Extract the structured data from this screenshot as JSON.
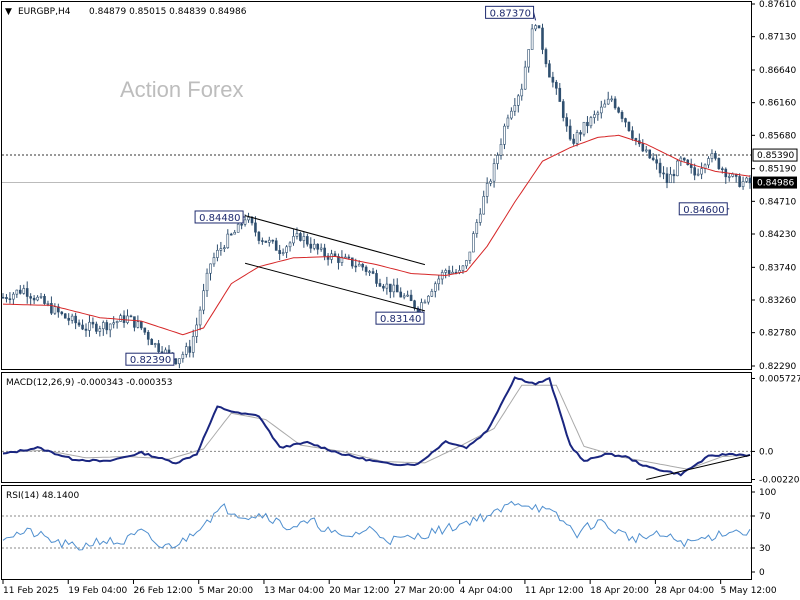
{
  "header": {
    "symbol": "EURGBP,H4",
    "ohlc": "0.84879 0.85015 0.84839 0.84986"
  },
  "watermark": "Action Forex",
  "macd_title": "MACD(12,26,9) -0.000343 -0.000353",
  "rsi_title": "RSI(14) 48.1400",
  "colors": {
    "candle": "#2f4f6f",
    "ma": "#d62728",
    "macd_line": "#1a2680",
    "macd_signal": "#aaaaaa",
    "rsi_line": "#4f8fcf",
    "callout": "#1e2a6e"
  },
  "chart_data": [
    {
      "type": "candlestick",
      "title": "EURGBP,H4",
      "ylim": [
        0.8229,
        0.8761
      ],
      "y_ticks": [
        "0.87610",
        "0.87130",
        "0.86640",
        "0.86160",
        "0.85680",
        "0.85190",
        "0.84710",
        "0.84230",
        "0.83740",
        "0.83260",
        "0.82780",
        "0.82290"
      ],
      "x_ticks": [
        "11 Feb 2025",
        "19 Feb 04:00",
        "26 Feb 12:00",
        "5 Mar 20:00",
        "13 Mar 04:00",
        "20 Mar 12:00",
        "27 Mar 20:00",
        "4 Apr 04:00",
        "11 Apr 12:00",
        "18 Apr 20:00",
        "28 Apr 04:00",
        "5 May 12:00"
      ],
      "close_path": [
        [
          0,
          0.833
        ],
        [
          6,
          0.8342
        ],
        [
          12,
          0.832
        ],
        [
          18,
          0.83
        ],
        [
          24,
          0.8285
        ],
        [
          30,
          0.829
        ],
        [
          36,
          0.83
        ],
        [
          40,
          0.8285
        ],
        [
          44,
          0.826
        ],
        [
          48,
          0.8245
        ],
        [
          50,
          0.8239
        ],
        [
          54,
          0.8255
        ],
        [
          56,
          0.829
        ],
        [
          60,
          0.838
        ],
        [
          64,
          0.841
        ],
        [
          68,
          0.843
        ],
        [
          70,
          0.8448
        ],
        [
          74,
          0.842
        ],
        [
          80,
          0.84
        ],
        [
          86,
          0.842
        ],
        [
          92,
          0.8395
        ],
        [
          98,
          0.8385
        ],
        [
          104,
          0.8375
        ],
        [
          110,
          0.835
        ],
        [
          116,
          0.833
        ],
        [
          120,
          0.8314
        ],
        [
          124,
          0.8345
        ],
        [
          128,
          0.837
        ],
        [
          132,
          0.8365
        ],
        [
          134,
          0.838
        ],
        [
          138,
          0.846
        ],
        [
          142,
          0.852
        ],
        [
          146,
          0.86
        ],
        [
          150,
          0.864
        ],
        [
          152,
          0.87
        ],
        [
          154,
          0.8737
        ],
        [
          158,
          0.866
        ],
        [
          162,
          0.86
        ],
        [
          164,
          0.8555
        ],
        [
          168,
          0.858
        ],
        [
          172,
          0.86
        ],
        [
          176,
          0.8622
        ],
        [
          180,
          0.859
        ],
        [
          184,
          0.855
        ],
        [
          188,
          0.853
        ],
        [
          192,
          0.85
        ],
        [
          196,
          0.853
        ],
        [
          200,
          0.851
        ],
        [
          204,
          0.854
        ],
        [
          208,
          0.852
        ],
        [
          212,
          0.85
        ],
        [
          216,
          0.8498
        ]
      ],
      "ma_path": [
        [
          0,
          0.832
        ],
        [
          14,
          0.8318
        ],
        [
          28,
          0.83
        ],
        [
          40,
          0.8295
        ],
        [
          52,
          0.8275
        ],
        [
          58,
          0.8285
        ],
        [
          66,
          0.835
        ],
        [
          74,
          0.8375
        ],
        [
          84,
          0.8388
        ],
        [
          96,
          0.839
        ],
        [
          108,
          0.8378
        ],
        [
          118,
          0.8365
        ],
        [
          128,
          0.8362
        ],
        [
          134,
          0.8368
        ],
        [
          140,
          0.8405
        ],
        [
          148,
          0.847
        ],
        [
          156,
          0.853
        ],
        [
          164,
          0.855
        ],
        [
          172,
          0.8565
        ],
        [
          178,
          0.8568
        ],
        [
          186,
          0.8555
        ],
        [
          196,
          0.853
        ],
        [
          206,
          0.8515
        ],
        [
          216,
          0.8508
        ]
      ],
      "annotations": [
        {
          "label": "0.87370",
          "x": 154,
          "y": 0.8737,
          "side": "left"
        },
        {
          "label": "0.84480",
          "x": 70,
          "y": 0.8448,
          "side": "left"
        },
        {
          "label": "0.83140",
          "x": 120,
          "y": 0.8314,
          "side": "below"
        },
        {
          "label": "0.82390",
          "x": 50,
          "y": 0.8239,
          "side": "left"
        },
        {
          "label": "0.84600",
          "x": 210,
          "y": 0.846,
          "side": "left"
        }
      ],
      "dashed_level": 0.8539,
      "dashed_level_label": "0.85390",
      "current_price": 0.84986,
      "current_price_label": "0.84986",
      "channel": {
        "upper": [
          [
            70,
            0.845
          ],
          [
            122,
            0.8378
          ]
        ],
        "lower": [
          [
            70,
            0.838
          ],
          [
            122,
            0.831
          ]
        ]
      }
    },
    {
      "type": "line",
      "title": "MACD(12,26,9) -0.000343 -0.000353",
      "ylim": [
        -0.0024,
        0.006
      ],
      "y_ticks": [
        0.005727,
        0.0,
        -0.002204
      ],
      "y_tick_labels": [
        "0.005727",
        "0.0",
        "-0.002204"
      ],
      "series": [
        {
          "values": [
            [
              0,
              -0.0002
            ],
            [
              10,
              0.0003
            ],
            [
              20,
              -0.0006
            ],
            [
              30,
              -0.0008
            ],
            [
              40,
              -0.0001
            ],
            [
              50,
              -0.0009
            ],
            [
              56,
              -0.0002
            ],
            [
              62,
              0.0035
            ],
            [
              68,
              0.003
            ],
            [
              74,
              0.0028
            ],
            [
              80,
              0.0003
            ],
            [
              88,
              0.0007
            ],
            [
              98,
              -0.0002
            ],
            [
              106,
              -0.0007
            ],
            [
              112,
              -0.001
            ],
            [
              120,
              -0.001
            ],
            [
              128,
              0.0008
            ],
            [
              134,
              0.0003
            ],
            [
              140,
              0.0016
            ],
            [
              148,
              0.0058
            ],
            [
              154,
              0.0053
            ],
            [
              158,
              0.0057
            ],
            [
              164,
              0.0005
            ],
            [
              168,
              -0.0008
            ],
            [
              174,
              -0.0002
            ],
            [
              180,
              -0.0004
            ],
            [
              186,
              -0.0012
            ],
            [
              196,
              -0.0018
            ],
            [
              204,
              -0.0004
            ],
            [
              210,
              -0.0002
            ],
            [
              216,
              -0.0003
            ]
          ]
        },
        {
          "values": [
            [
              0,
              -0.0001
            ],
            [
              12,
              0.0001
            ],
            [
              24,
              -0.0005
            ],
            [
              36,
              -0.0004
            ],
            [
              48,
              -0.0006
            ],
            [
              58,
              0.0002
            ],
            [
              66,
              0.003
            ],
            [
              76,
              0.0025
            ],
            [
              86,
              0.0005
            ],
            [
              98,
              0.0
            ],
            [
              110,
              -0.0008
            ],
            [
              122,
              -0.0009
            ],
            [
              132,
              0.0004
            ],
            [
              142,
              0.0018
            ],
            [
              150,
              0.0052
            ],
            [
              160,
              0.0052
            ],
            [
              168,
              0.0004
            ],
            [
              178,
              -0.0004
            ],
            [
              188,
              -0.0009
            ],
            [
              198,
              -0.0014
            ],
            [
              208,
              -0.0004
            ],
            [
              216,
              -0.0003
            ]
          ]
        }
      ],
      "trendline": [
        [
          186,
          -0.0022
        ],
        [
          216,
          -0.0003
        ]
      ]
    },
    {
      "type": "line",
      "title": "RSI(14) 48.1400",
      "ylim": [
        0,
        100
      ],
      "y_ticks": [
        100,
        70,
        30,
        0
      ],
      "dashed_levels": [
        70,
        30
      ],
      "series": [
        {
          "values": [
            [
              0,
              45
            ],
            [
              8,
              50
            ],
            [
              16,
              36
            ],
            [
              22,
              30
            ],
            [
              28,
              40
            ],
            [
              34,
              36
            ],
            [
              40,
              50
            ],
            [
              46,
              30
            ],
            [
              52,
              38
            ],
            [
              58,
              62
            ],
            [
              64,
              80
            ],
            [
              70,
              70
            ],
            [
              76,
              72
            ],
            [
              82,
              56
            ],
            [
              90,
              62
            ],
            [
              98,
              42
            ],
            [
              106,
              54
            ],
            [
              112,
              40
            ],
            [
              118,
              42
            ],
            [
              124,
              50
            ],
            [
              130,
              56
            ],
            [
              136,
              66
            ],
            [
              142,
              72
            ],
            [
              148,
              88
            ],
            [
              154,
              82
            ],
            [
              160,
              70
            ],
            [
              166,
              48
            ],
            [
              172,
              64
            ],
            [
              176,
              54
            ],
            [
              182,
              42
            ],
            [
              190,
              46
            ],
            [
              198,
              36
            ],
            [
              206,
              46
            ],
            [
              210,
              52
            ],
            [
              216,
              48
            ]
          ]
        }
      ]
    }
  ]
}
